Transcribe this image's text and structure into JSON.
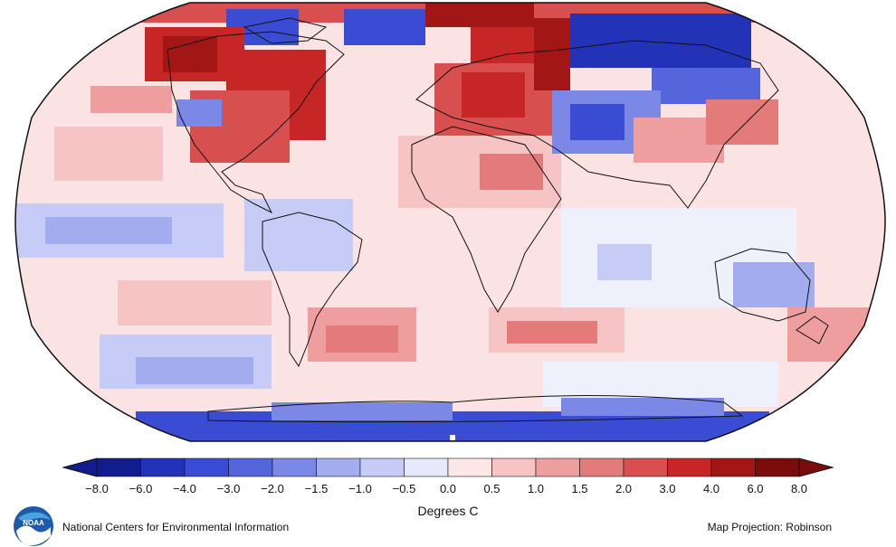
{
  "legend": {
    "title": "Degrees C",
    "ticks": [
      "−8.0",
      "−6.0",
      "−4.0",
      "−3.0",
      "−2.0",
      "−1.5",
      "−1.0",
      "−0.5",
      "0.0",
      "0.5",
      "1.0",
      "1.5",
      "2.0",
      "3.0",
      "4.0",
      "6.0",
      "8.0"
    ],
    "colors": [
      "#121c8c",
      "#2333b8",
      "#3a4cd4",
      "#5566dd",
      "#7b88e6",
      "#a2acee",
      "#c6ccf5",
      "#e7e9fb",
      "#fde6e6",
      "#f6c4c4",
      "#ee9e9e",
      "#e47b7b",
      "#d84f4f",
      "#c62626",
      "#a31616",
      "#7a0c0c"
    ]
  },
  "footer": {
    "organization": "National Centers for Environmental Information",
    "projection": "Map Projection: Robinson",
    "logo_text": "NOAA"
  },
  "map_colors": {
    "ocean_base": "#fbe3e3",
    "neutral": "#eef0fb",
    "warm_light": "#f6c4c4",
    "warm_mid": "#e47b7b",
    "warm_strong": "#c62626",
    "cool_light": "#c6ccf5",
    "cool_mid": "#7b88e6",
    "cool_strong": "#3a4cd4"
  }
}
